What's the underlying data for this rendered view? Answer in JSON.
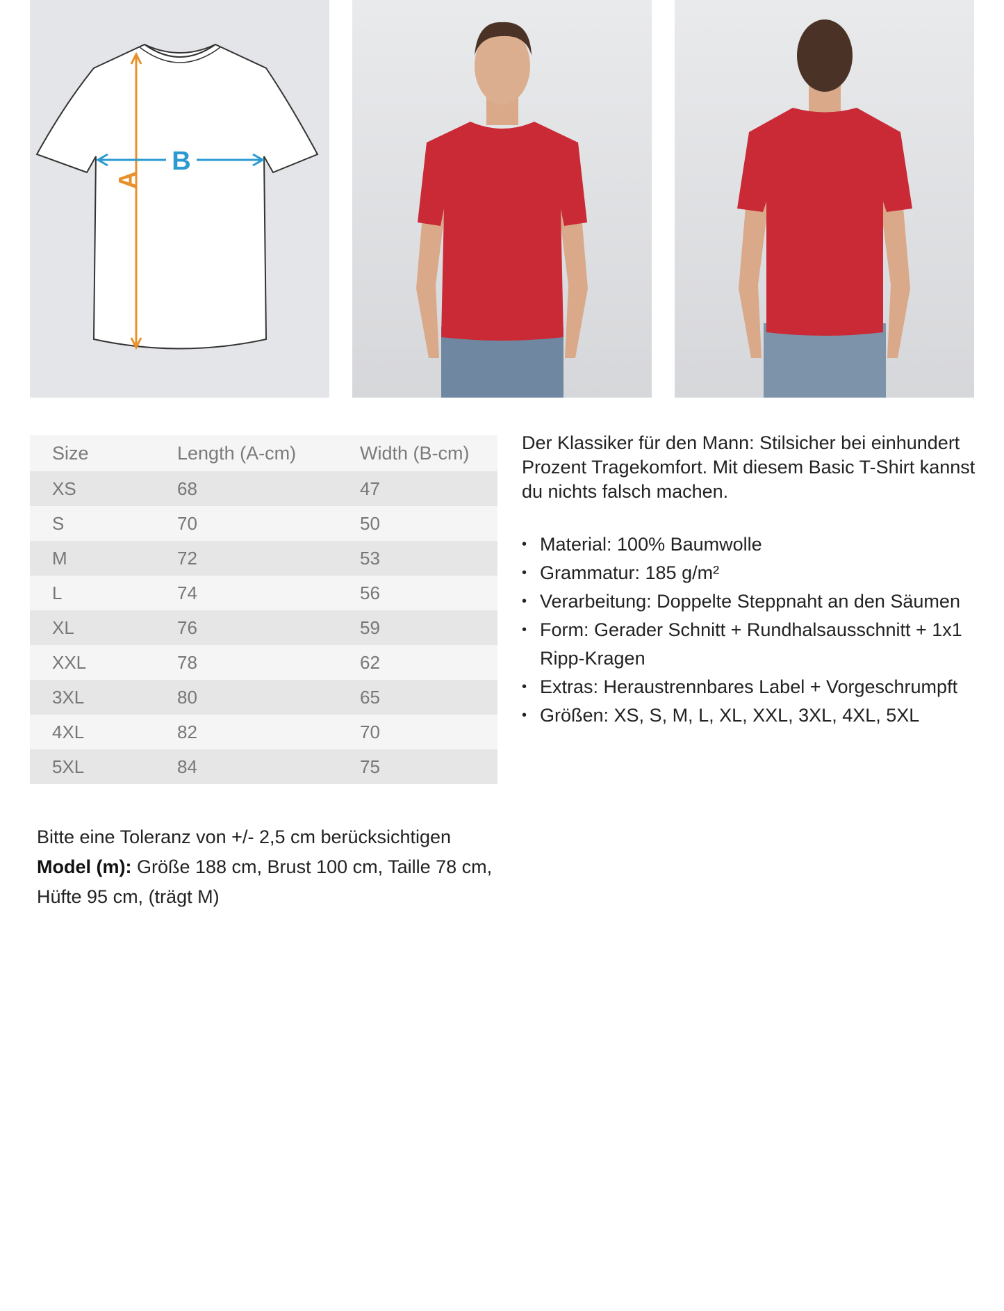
{
  "images": {
    "diagram": {
      "label_a": "A",
      "label_b": "B",
      "arrow_a_color": "#e8912b",
      "arrow_b_color": "#2b9ad0"
    },
    "front_photo": {
      "shirt_color": "#c92a36"
    },
    "back_photo": {
      "shirt_color": "#c92a36"
    }
  },
  "size_table": {
    "headers": [
      "Size",
      "Length (A-cm)",
      "Width (B-cm)"
    ],
    "rows": [
      [
        "XS",
        "68",
        "47"
      ],
      [
        "S",
        "70",
        "50"
      ],
      [
        "M",
        "72",
        "53"
      ],
      [
        "L",
        "74",
        "56"
      ],
      [
        "XL",
        "76",
        "59"
      ],
      [
        "XXL",
        "78",
        "62"
      ],
      [
        "3XL",
        "80",
        "65"
      ],
      [
        "4XL",
        "82",
        "70"
      ],
      [
        "5XL",
        "84",
        "75"
      ]
    ]
  },
  "description": {
    "intro": "Der Klassiker für den Mann: Stilsicher bei ein­hundert Prozent Tragekomfort. Mit diesem Basic T-Shirt kannst du nichts falsch machen.",
    "features": [
      "Material: 100% Baumwolle",
      "Grammatur: 185 g/m²",
      "Verarbeitung: Doppelte Steppnaht an den Säumen",
      "Form: Gerader Schnitt + Rundhalsausschnitt + 1x1 Ripp-Kragen",
      "Extras: Heraustrennbares Label + Vorge­schrumpft",
      "Größen: XS, S, M, L, XL, XXL, 3XL, 4XL, 5XL"
    ]
  },
  "note": {
    "tolerance": "Bitte eine Toleranz von +/- 2,5 cm berücksichtigen",
    "model_label": "Model (m):",
    "model_text": " Größe 188 cm, Brust 100 cm, Taille 78 cm, Hüfte 95 cm, (trägt M)"
  }
}
